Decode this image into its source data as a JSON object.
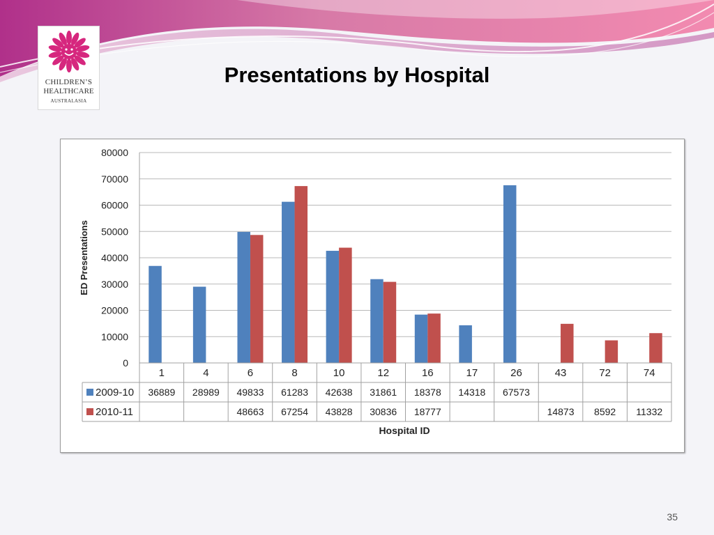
{
  "slide": {
    "title": "Presentations by Hospital",
    "page_number": "35"
  },
  "logo": {
    "line1": "CHILDREN’S",
    "line2": "HEALTHCARE",
    "line3": "AUSTRALASIA"
  },
  "colors": {
    "series_2009": "#4f81bd",
    "series_2010": "#c0504d",
    "logo_magenta": "#d6277e"
  },
  "chart_data": {
    "type": "bar",
    "xlabel": "Hospital ID",
    "ylabel": "ED Presentations",
    "ylim": [
      0,
      80000
    ],
    "yticks": [
      0,
      10000,
      20000,
      30000,
      40000,
      50000,
      60000,
      70000,
      80000
    ],
    "grid": true,
    "legend": "data-table",
    "categories": [
      "1",
      "4",
      "6",
      "8",
      "10",
      "12",
      "16",
      "17",
      "26",
      "43",
      "72",
      "74"
    ],
    "series": [
      {
        "name": "2009-10",
        "values": [
          36889,
          28989,
          49833,
          61283,
          42638,
          31861,
          18378,
          14318,
          67573,
          null,
          null,
          null
        ]
      },
      {
        "name": "2010-11",
        "values": [
          null,
          null,
          48663,
          67254,
          43828,
          30836,
          18777,
          null,
          null,
          14873,
          8592,
          11332
        ]
      }
    ]
  }
}
